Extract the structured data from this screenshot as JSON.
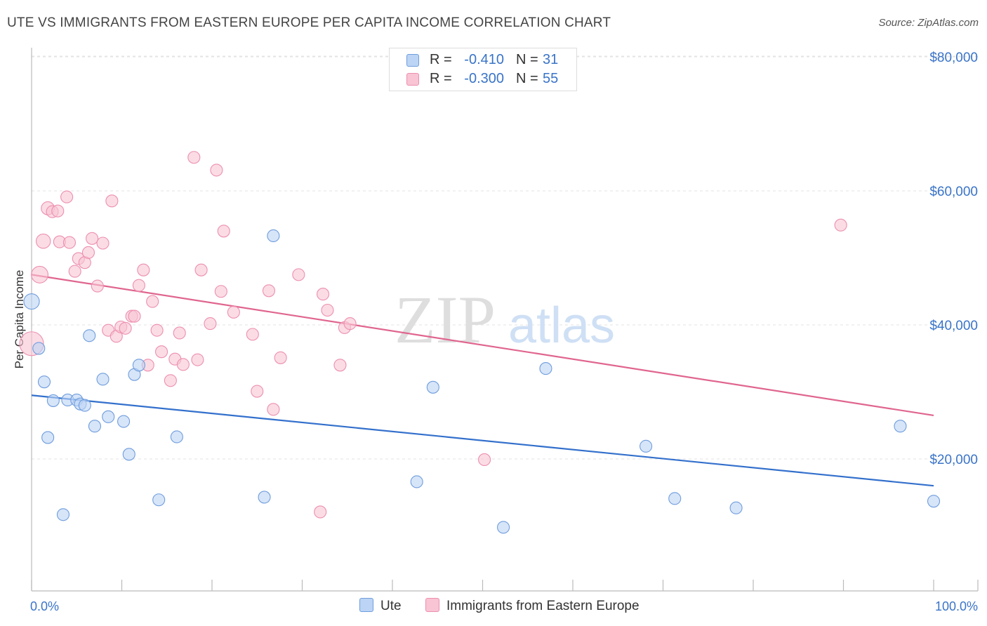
{
  "title": "UTE VS IMMIGRANTS FROM EASTERN EUROPE PER CAPITA INCOME CORRELATION CHART",
  "source": "Source: ZipAtlas.com",
  "watermark": {
    "zip": "ZIP",
    "atlas": "atlas"
  },
  "legend_top": {
    "rows": [
      {
        "r_label": "R =",
        "r_value": "-0.410",
        "n_label": "N =",
        "n_value": "31"
      },
      {
        "r_label": "R =",
        "r_value": "-0.300",
        "n_label": "N =",
        "n_value": "55"
      }
    ]
  },
  "legend_bottom": {
    "items": [
      {
        "label": "Ute"
      },
      {
        "label": "Immigrants from Eastern Europe"
      }
    ]
  },
  "colors": {
    "ute_fill": "#bcd4f5",
    "ute_stroke": "#6f9ddc",
    "ute_line": "#3370cc",
    "imm_fill": "#f9c4d4",
    "imm_stroke": "#ec8fae",
    "imm_line": "#e0658f",
    "grid": "#e3e3e3",
    "axis_text": "#3a74c8"
  },
  "chart_data": {
    "type": "scatter",
    "title": "UTE VS IMMIGRANTS FROM EASTERN EUROPE PER CAPITA INCOME CORRELATION CHART",
    "xlabel": "",
    "ylabel": "Per Capita Income",
    "xlim": [
      0,
      100
    ],
    "ylim": [
      0,
      83000
    ],
    "x_tick_labels": [
      "0.0%",
      "100.0%"
    ],
    "y_ticks": [
      {
        "value": 20000,
        "label": "$20,000"
      },
      {
        "value": 40000,
        "label": "$40,000"
      },
      {
        "value": 60000,
        "label": "$60,000"
      },
      {
        "value": 80000,
        "label": "$80,000"
      }
    ],
    "grid": true,
    "legend_position": "top-center",
    "series": [
      {
        "name": "Ute",
        "r": -0.41,
        "n": 31,
        "trend": {
          "x": [
            0,
            100
          ],
          "y": [
            29500,
            16000
          ]
        },
        "points": [
          {
            "x": 0.0,
            "y": 43500,
            "s": 1.3
          },
          {
            "x": 0.8,
            "y": 36500,
            "s": 1
          },
          {
            "x": 1.4,
            "y": 31500,
            "s": 1
          },
          {
            "x": 1.8,
            "y": 23200,
            "s": 1
          },
          {
            "x": 2.4,
            "y": 28700,
            "s": 1
          },
          {
            "x": 3.5,
            "y": 11700,
            "s": 1
          },
          {
            "x": 4.0,
            "y": 28800,
            "s": 1
          },
          {
            "x": 5.0,
            "y": 28800,
            "s": 1
          },
          {
            "x": 5.4,
            "y": 28200,
            "s": 1
          },
          {
            "x": 5.9,
            "y": 28000,
            "s": 1
          },
          {
            "x": 6.4,
            "y": 38400,
            "s": 1
          },
          {
            "x": 7.0,
            "y": 24900,
            "s": 1
          },
          {
            "x": 7.9,
            "y": 31900,
            "s": 1
          },
          {
            "x": 8.5,
            "y": 26300,
            "s": 1
          },
          {
            "x": 10.2,
            "y": 25600,
            "s": 1
          },
          {
            "x": 10.8,
            "y": 20700,
            "s": 1
          },
          {
            "x": 11.4,
            "y": 32600,
            "s": 1
          },
          {
            "x": 11.9,
            "y": 34000,
            "s": 1
          },
          {
            "x": 14.1,
            "y": 13900,
            "s": 1
          },
          {
            "x": 16.1,
            "y": 23300,
            "s": 1
          },
          {
            "x": 25.8,
            "y": 14300,
            "s": 1
          },
          {
            "x": 26.8,
            "y": 53300,
            "s": 1
          },
          {
            "x": 42.7,
            "y": 16600,
            "s": 1
          },
          {
            "x": 44.5,
            "y": 30700,
            "s": 1
          },
          {
            "x": 52.3,
            "y": 9800,
            "s": 1
          },
          {
            "x": 57.0,
            "y": 33500,
            "s": 1
          },
          {
            "x": 68.1,
            "y": 21900,
            "s": 1
          },
          {
            "x": 71.3,
            "y": 14100,
            "s": 1
          },
          {
            "x": 78.1,
            "y": 12700,
            "s": 1
          },
          {
            "x": 96.3,
            "y": 24900,
            "s": 1
          },
          {
            "x": 100.0,
            "y": 13700,
            "s": 1
          }
        ]
      },
      {
        "name": "Immigrants from Eastern Europe",
        "r": -0.3,
        "n": 55,
        "trend": {
          "x": [
            0,
            100
          ],
          "y": [
            47500,
            26500
          ]
        },
        "points": [
          {
            "x": 0.0,
            "y": 37200,
            "s": 2.0
          },
          {
            "x": 0.9,
            "y": 47500,
            "s": 1.4
          },
          {
            "x": 1.3,
            "y": 52500,
            "s": 1.2
          },
          {
            "x": 1.8,
            "y": 57400,
            "s": 1.1
          },
          {
            "x": 2.3,
            "y": 56900,
            "s": 1
          },
          {
            "x": 2.9,
            "y": 57000,
            "s": 1
          },
          {
            "x": 3.1,
            "y": 52400,
            "s": 1
          },
          {
            "x": 3.9,
            "y": 59100,
            "s": 1
          },
          {
            "x": 4.2,
            "y": 52300,
            "s": 1
          },
          {
            "x": 4.8,
            "y": 48000,
            "s": 1
          },
          {
            "x": 5.2,
            "y": 49900,
            "s": 1
          },
          {
            "x": 5.9,
            "y": 49300,
            "s": 1
          },
          {
            "x": 6.3,
            "y": 50800,
            "s": 1
          },
          {
            "x": 6.7,
            "y": 52900,
            "s": 1
          },
          {
            "x": 7.3,
            "y": 45800,
            "s": 1
          },
          {
            "x": 7.9,
            "y": 52200,
            "s": 1
          },
          {
            "x": 8.5,
            "y": 39200,
            "s": 1
          },
          {
            "x": 8.9,
            "y": 58500,
            "s": 1
          },
          {
            "x": 9.4,
            "y": 38300,
            "s": 1
          },
          {
            "x": 9.9,
            "y": 39700,
            "s": 1
          },
          {
            "x": 10.4,
            "y": 39500,
            "s": 1
          },
          {
            "x": 11.1,
            "y": 41300,
            "s": 1
          },
          {
            "x": 11.4,
            "y": 41300,
            "s": 1
          },
          {
            "x": 11.9,
            "y": 45900,
            "s": 1
          },
          {
            "x": 12.4,
            "y": 48200,
            "s": 1
          },
          {
            "x": 12.9,
            "y": 34000,
            "s": 1
          },
          {
            "x": 13.4,
            "y": 43500,
            "s": 1
          },
          {
            "x": 13.9,
            "y": 39200,
            "s": 1
          },
          {
            "x": 14.4,
            "y": 36000,
            "s": 1
          },
          {
            "x": 15.4,
            "y": 31700,
            "s": 1
          },
          {
            "x": 15.9,
            "y": 34900,
            "s": 1
          },
          {
            "x": 16.4,
            "y": 38800,
            "s": 1
          },
          {
            "x": 16.8,
            "y": 34100,
            "s": 1
          },
          {
            "x": 18.0,
            "y": 65000,
            "s": 1
          },
          {
            "x": 18.4,
            "y": 34800,
            "s": 1
          },
          {
            "x": 18.8,
            "y": 48200,
            "s": 1
          },
          {
            "x": 19.8,
            "y": 40200,
            "s": 1
          },
          {
            "x": 20.5,
            "y": 63100,
            "s": 1
          },
          {
            "x": 21.0,
            "y": 45000,
            "s": 1
          },
          {
            "x": 21.3,
            "y": 54000,
            "s": 1
          },
          {
            "x": 22.4,
            "y": 41900,
            "s": 1
          },
          {
            "x": 24.5,
            "y": 38600,
            "s": 1
          },
          {
            "x": 25.0,
            "y": 30100,
            "s": 1
          },
          {
            "x": 26.3,
            "y": 45100,
            "s": 1
          },
          {
            "x": 26.8,
            "y": 27400,
            "s": 1
          },
          {
            "x": 27.6,
            "y": 35100,
            "s": 1
          },
          {
            "x": 29.6,
            "y": 47500,
            "s": 1
          },
          {
            "x": 32.0,
            "y": 12100,
            "s": 1
          },
          {
            "x": 32.3,
            "y": 44600,
            "s": 1
          },
          {
            "x": 32.8,
            "y": 42200,
            "s": 1
          },
          {
            "x": 34.2,
            "y": 34000,
            "s": 1
          },
          {
            "x": 34.7,
            "y": 39600,
            "s": 1
          },
          {
            "x": 35.3,
            "y": 40200,
            "s": 1
          },
          {
            "x": 50.2,
            "y": 19900,
            "s": 1
          },
          {
            "x": 89.7,
            "y": 54900,
            "s": 1
          }
        ]
      }
    ]
  }
}
